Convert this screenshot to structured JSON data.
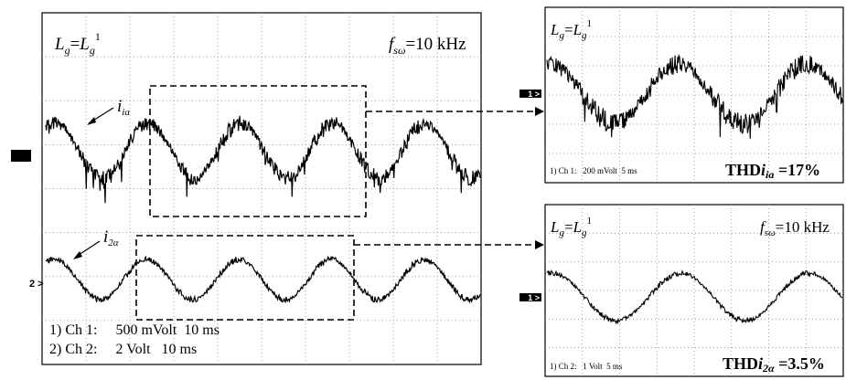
{
  "figure": {
    "main_panel": {
      "top_left_label": {
        "var": "L",
        "sub": "g",
        "eq": "=",
        "var2": "L",
        "sub2": "g",
        "sup2": "1"
      },
      "top_right_label": {
        "var": "f",
        "sub": "sω",
        "rest": "=10 kHz"
      },
      "trace1_name": {
        "var": "i",
        "sub": "ia"
      },
      "trace2_name": {
        "var": "i",
        "sub": "2α"
      },
      "channel1_marker": "1 >",
      "channel2_marker": "2 >",
      "footer_line1": "1) Ch 1:     500 mVolt  10 ms",
      "footer_line2": "2) Ch 2:     2 Volt   10 ms"
    },
    "zoom_panel_top": {
      "top_left_label": {
        "var": "L",
        "sub": "g",
        "eq": "=",
        "var2": "L",
        "sub2": "g",
        "sup2": "1"
      },
      "marker": "1 >",
      "footer": "1) Ch 1:   200 mVolt  5 ms",
      "thd": {
        "prefix": "THD",
        "var": "i",
        "sub": "ia",
        "value": " =17%"
      }
    },
    "zoom_panel_bottom": {
      "top_left_label": {
        "var": "L",
        "sub": "g",
        "eq": "=",
        "var2": "L",
        "sub2": "g",
        "sup2": "1"
      },
      "top_right_label": {
        "var": "f",
        "sub": "sω",
        "rest": "=10 kHz"
      },
      "marker": "1 >",
      "footer": "1) Ch 2:   1 Volt  5 ms",
      "thd": {
        "prefix": "THD",
        "var": "i",
        "sub": "2α",
        "value": " =3.5%"
      }
    }
  },
  "chart_data": [
    {
      "type": "line",
      "panel": "main",
      "series": [
        {
          "name": "i_ia",
          "waveform": "sine",
          "cycles": 4.7,
          "noise": "high",
          "ripple_amplitude": 0.35
        },
        {
          "name": "i_2α",
          "waveform": "sine",
          "cycles": 4.7,
          "noise": "low",
          "ripple_amplitude": 0.12
        }
      ],
      "grid": true,
      "grid_divisions": {
        "x": 10,
        "y": 8
      }
    },
    {
      "type": "line",
      "panel": "zoom_top",
      "series": [
        {
          "name": "i_ia",
          "waveform": "sine",
          "cycles": 2.3,
          "noise": "high",
          "ripple_amplitude": 0.4
        }
      ],
      "grid": true,
      "annotation": "THDi_ia =17%"
    },
    {
      "type": "line",
      "panel": "zoom_bottom",
      "series": [
        {
          "name": "i_2α",
          "waveform": "sine",
          "cycles": 2.3,
          "noise": "low",
          "ripple_amplitude": 0.1
        }
      ],
      "grid": true,
      "annotation": "THDi_2α =3.5%"
    }
  ]
}
